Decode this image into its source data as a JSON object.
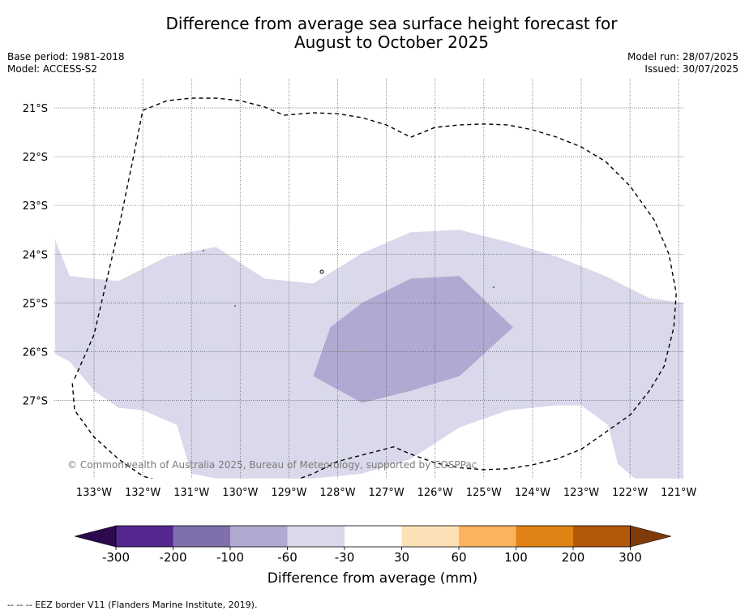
{
  "title_line1": "Difference from average sea surface height forecast for",
  "title_line2": "August to October 2025",
  "base_period": "Base period: 1981-2018",
  "model": "Model: ACCESS-S2",
  "model_run": "Model run: 28/07/2025",
  "issued": "Issued: 30/07/2025",
  "watermark": "© Commonwealth of Australia 2025, Bureau of Meteorology, supported by COSPPac",
  "colorbar_label": "Difference from average (mm)",
  "footnote": "--  --  -- EEZ border V11 (Flanders Marine Institute, 2019).",
  "colors": {
    "below_-300": "#2d0a4e",
    "-300_-200": "#54278f",
    "-200_-100": "#7f70ab",
    "-100_-60": "#b0aad2",
    "-60_-30": "#d9d9eb",
    "-30_30": "#ffffff",
    "30_60": "#fee0b6",
    "60_100": "#fbb35d",
    "100_200": "#e08214",
    "200_300": "#b35806",
    "above_300": "#7f3b08"
  },
  "chart_data": {
    "type": "heatmap",
    "x_ticks": [
      "133°W",
      "132°W",
      "131°W",
      "130°W",
      "129°W",
      "128°W",
      "127°W",
      "126°W",
      "125°W",
      "124°W",
      "123°W",
      "122°W",
      "121°W"
    ],
    "y_ticks": [
      "21°S",
      "22°S",
      "23°S",
      "24°S",
      "25°S",
      "26°S",
      "27°S"
    ],
    "xlim": [
      -133.8,
      -120.9
    ],
    "ylim": [
      -28.6,
      -20.6
    ],
    "colorbar_ticks": [
      "-300",
      "-200",
      "-100",
      "-60",
      "-30",
      "30",
      "60",
      "100",
      "200",
      "300"
    ],
    "regions": [
      {
        "level": "-60_-30",
        "polygon": [
          [
            -133.8,
            -23.7
          ],
          [
            -133.5,
            -24.45
          ],
          [
            -132.5,
            -24.55
          ],
          [
            -131.5,
            -24.05
          ],
          [
            -130.5,
            -23.85
          ],
          [
            -129.5,
            -24.5
          ],
          [
            -128.5,
            -24.6
          ],
          [
            -127.5,
            -23.98
          ],
          [
            -126.5,
            -23.55
          ],
          [
            -125.5,
            -23.5
          ],
          [
            -124.5,
            -23.75
          ],
          [
            -123.5,
            -24.05
          ],
          [
            -122.5,
            -24.45
          ],
          [
            -121.6,
            -24.9
          ],
          [
            -120.9,
            -25.0
          ],
          [
            -120.9,
            -28.6
          ],
          [
            -121.9,
            -28.6
          ],
          [
            -122.25,
            -28.3
          ],
          [
            -122.45,
            -27.5
          ],
          [
            -123.0,
            -27.1
          ],
          [
            -123.5,
            -27.1
          ],
          [
            -124.5,
            -27.2
          ],
          [
            -125.5,
            -27.55
          ],
          [
            -126.5,
            -28.2
          ],
          [
            -127.5,
            -28.5
          ],
          [
            -128.5,
            -28.6
          ],
          [
            -129.5,
            -28.6
          ],
          [
            -130.5,
            -28.6
          ],
          [
            -131.0,
            -28.5
          ],
          [
            -131.3,
            -27.5
          ],
          [
            -132.0,
            -27.2
          ],
          [
            -132.5,
            -27.15
          ],
          [
            -133.0,
            -26.8
          ],
          [
            -133.5,
            -26.2
          ],
          [
            -133.8,
            -26.05
          ]
        ]
      },
      {
        "level": "-100_-60",
        "polygon": [
          [
            -128.5,
            -26.5
          ],
          [
            -128.15,
            -25.5
          ],
          [
            -127.5,
            -25.0
          ],
          [
            -126.5,
            -24.5
          ],
          [
            -125.5,
            -24.45
          ],
          [
            -124.4,
            -25.5
          ],
          [
            -125.5,
            -26.5
          ],
          [
            -126.5,
            -26.8
          ],
          [
            -127.5,
            -27.05
          ]
        ]
      }
    ],
    "eez_border": [
      [
        -133.4,
        -26.55
      ],
      [
        -133.0,
        -25.65
      ],
      [
        -132.5,
        -23.5
      ],
      [
        -132.15,
        -21.8
      ],
      [
        -132.0,
        -21.05
      ],
      [
        -131.5,
        -20.85
      ],
      [
        -131.0,
        -20.8
      ],
      [
        -130.5,
        -20.8
      ],
      [
        -130.0,
        -20.85
      ],
      [
        -129.5,
        -20.98
      ],
      [
        -129.1,
        -21.15
      ],
      [
        -128.5,
        -21.1
      ],
      [
        -128.0,
        -21.12
      ],
      [
        -127.5,
        -21.2
      ],
      [
        -127.0,
        -21.35
      ],
      [
        -126.5,
        -21.6
      ],
      [
        -126.0,
        -21.4
      ],
      [
        -125.5,
        -21.35
      ],
      [
        -125.0,
        -21.33
      ],
      [
        -124.5,
        -21.35
      ],
      [
        -124.0,
        -21.45
      ],
      [
        -123.5,
        -21.6
      ],
      [
        -123.0,
        -21.8
      ],
      [
        -122.5,
        -22.1
      ],
      [
        -122.0,
        -22.6
      ],
      [
        -121.5,
        -23.3
      ],
      [
        -121.2,
        -24.0
      ],
      [
        -121.05,
        -24.8
      ],
      [
        -121.1,
        -25.5
      ],
      [
        -121.3,
        -26.3
      ],
      [
        -121.6,
        -26.8
      ],
      [
        -122.0,
        -27.3
      ],
      [
        -122.5,
        -27.65
      ],
      [
        -123.0,
        -28.0
      ],
      [
        -123.5,
        -28.2
      ],
      [
        -124.0,
        -28.32
      ],
      [
        -124.5,
        -28.4
      ],
      [
        -125.0,
        -28.42
      ],
      [
        -125.5,
        -28.38
      ],
      [
        -126.0,
        -28.28
      ],
      [
        -126.5,
        -28.1
      ],
      [
        -126.85,
        -27.95
      ],
      [
        -127.5,
        -28.12
      ],
      [
        -128.0,
        -28.25
      ],
      [
        -128.5,
        -28.5
      ],
      [
        -129.0,
        -28.68
      ],
      [
        -129.5,
        -28.82
      ],
      [
        -130.0,
        -28.88
      ],
      [
        -130.5,
        -28.86
      ],
      [
        -131.0,
        -28.8
      ],
      [
        -131.5,
        -28.7
      ],
      [
        -132.0,
        -28.55
      ],
      [
        -132.5,
        -28.2
      ],
      [
        -133.0,
        -27.75
      ],
      [
        -133.4,
        -27.2
      ],
      [
        -133.45,
        -26.6
      ]
    ]
  }
}
